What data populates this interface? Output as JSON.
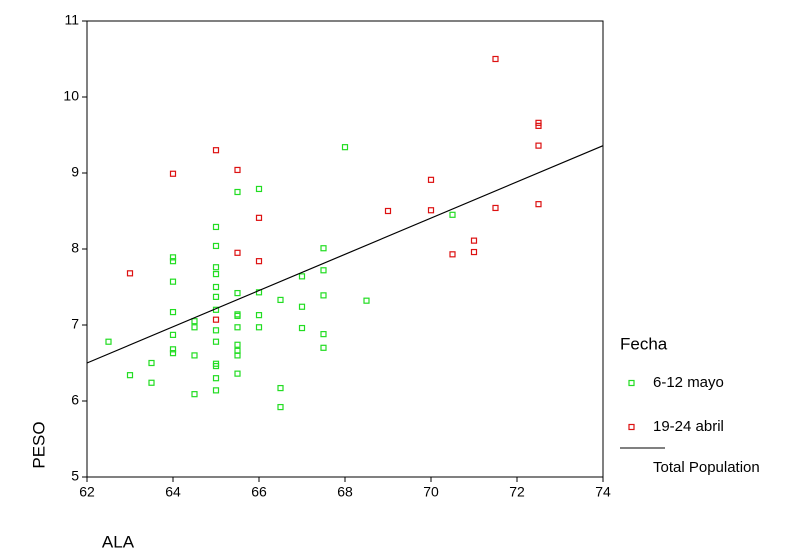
{
  "chart_data": {
    "type": "scatter",
    "xlabel": "ALA",
    "ylabel": "PESO",
    "legend_title": "Fecha",
    "legend": "right",
    "grid": false,
    "xlim": [
      62,
      74
    ],
    "xticks": [
      62,
      64,
      66,
      68,
      70,
      72,
      74
    ],
    "ylim": [
      5,
      11
    ],
    "yticks": [
      5,
      6,
      7,
      8,
      9,
      10,
      11
    ],
    "series": [
      {
        "name": "6-12 mayo",
        "color": "#22dd22",
        "x": [
          62.5,
          63,
          63.5,
          63.5,
          64,
          64,
          64,
          64,
          64,
          64,
          64,
          64.5,
          64.5,
          64.5,
          64.5,
          65,
          65,
          65,
          65,
          65,
          65,
          65,
          65,
          65,
          65,
          65,
          65,
          65,
          65.5,
          65.5,
          65.5,
          65.5,
          65.5,
          65.5,
          65.5,
          65.5,
          65.5,
          66,
          66,
          66,
          66,
          66.5,
          66.5,
          66.5,
          67,
          67,
          67,
          67.5,
          67.5,
          67.5,
          67.5,
          67.5,
          68,
          68.5,
          70.5
        ],
        "values": [
          6.78,
          6.34,
          6.5,
          6.24,
          7.89,
          7.84,
          7.57,
          7.17,
          6.87,
          6.68,
          6.63,
          7.05,
          6.97,
          6.6,
          6.09,
          8.29,
          8.04,
          7.76,
          7.67,
          7.5,
          7.37,
          7.2,
          6.93,
          6.78,
          6.49,
          6.46,
          6.3,
          6.14,
          8.75,
          7.42,
          7.14,
          7.12,
          6.97,
          6.74,
          6.66,
          6.6,
          6.36,
          8.79,
          7.43,
          7.13,
          6.97,
          7.33,
          6.17,
          5.92,
          7.64,
          7.24,
          6.96,
          8.01,
          7.72,
          7.39,
          6.88,
          6.7,
          9.34,
          7.32,
          8.45
        ]
      },
      {
        "name": "19-24 abril",
        "color": "#dd1111",
        "x": [
          63,
          64,
          65,
          65,
          65.5,
          65.5,
          66,
          66,
          69,
          70,
          70,
          70.5,
          71,
          71,
          71.5,
          71.5,
          72.5,
          72.5,
          72.5,
          72.5
        ],
        "values": [
          7.68,
          8.99,
          9.3,
          7.07,
          9.04,
          7.95,
          8.41,
          7.84,
          8.5,
          8.91,
          8.51,
          7.93,
          8.11,
          7.96,
          10.5,
          8.54,
          9.66,
          9.62,
          9.36,
          8.59
        ]
      },
      {
        "name": "Total Population",
        "type": "line",
        "color": "#000000",
        "x": [
          62,
          74
        ],
        "values": [
          6.5,
          9.36
        ]
      }
    ]
  }
}
